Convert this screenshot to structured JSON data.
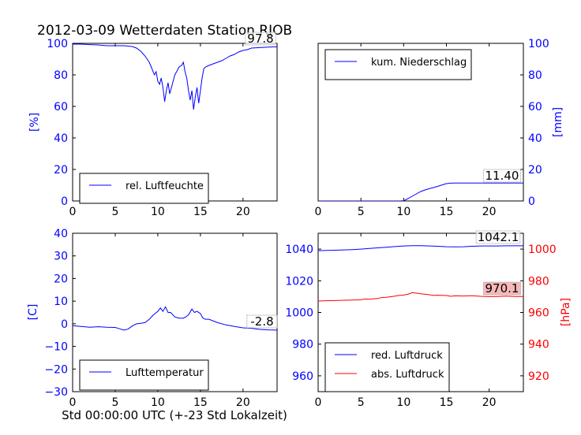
{
  "title": "2012-03-09 Wetterdaten Station RJOB",
  "footer_xlabel": "Std 00:00:00 UTC (+-23 Std Lokalzeit)",
  "colors": {
    "blue": "#0000ff",
    "red": "#ff0000",
    "black": "#000000",
    "value_box_red": "#f7b8b8"
  },
  "chart_data": [
    {
      "type": "line",
      "panel": "top-left",
      "ylabel": "[%]",
      "xlim": [
        0,
        24
      ],
      "ylim": [
        0,
        100
      ],
      "xticks": [
        "0",
        "5",
        "10",
        "15",
        "20"
      ],
      "yticks": [
        "0",
        "20",
        "40",
        "60",
        "80",
        "100"
      ],
      "legend": {
        "position": "lower-left"
      },
      "last_value_label": "97.8",
      "series": [
        {
          "name": "rel. Luftfeuchte",
          "color": "#0000ff",
          "x": [
            0,
            1,
            2,
            3,
            4,
            5,
            6,
            7,
            7.5,
            8,
            8.5,
            9,
            9.3,
            9.6,
            9.8,
            10,
            10.2,
            10.4,
            10.6,
            10.8,
            11,
            11.2,
            11.4,
            11.6,
            11.8,
            12,
            12.2,
            12.5,
            12.8,
            13,
            13.2,
            13.4,
            13.6,
            13.8,
            14,
            14.2,
            14.4,
            14.6,
            14.8,
            15,
            15.2,
            15.4,
            15.6,
            16,
            16.5,
            17,
            17.5,
            18,
            18.5,
            19,
            19.5,
            20,
            20.5,
            21,
            22,
            23,
            24
          ],
          "y": [
            99.5,
            99.5,
            99.2,
            99,
            98.5,
            98.5,
            98.5,
            98,
            97,
            95,
            92,
            88,
            84,
            80,
            82,
            76,
            74,
            78,
            72,
            63,
            70,
            75,
            68,
            72,
            76,
            80,
            82,
            85,
            86,
            88,
            82,
            78,
            70,
            64,
            70,
            58,
            66,
            72,
            62,
            70,
            78,
            84,
            85,
            86,
            87,
            88,
            89,
            90.5,
            92,
            93,
            94.5,
            95.5,
            96,
            97,
            97.3,
            97.6,
            97.8
          ]
        }
      ]
    },
    {
      "type": "line",
      "panel": "top-right",
      "ylabel": "[mm]",
      "xlim": [
        0,
        24
      ],
      "ylim": [
        0,
        100
      ],
      "xticks": [
        "0",
        "5",
        "10",
        "15",
        "20"
      ],
      "yticks": [
        "0",
        "20",
        "40",
        "60",
        "80",
        "100"
      ],
      "legend": {
        "position": "upper-left"
      },
      "last_value_label": "11.40",
      "series": [
        {
          "name": "kum. Niederschlag",
          "color": "#0000ff",
          "x": [
            0,
            5,
            9.5,
            10,
            10.5,
            11,
            11.5,
            12,
            12.5,
            13,
            13.5,
            14,
            14.5,
            15,
            15.5,
            16,
            17,
            18,
            20,
            22,
            24
          ],
          "y": [
            0,
            0,
            0,
            0.1,
            1.5,
            3,
            4.5,
            6,
            7,
            7.8,
            8.5,
            9.3,
            10.2,
            11,
            11.3,
            11.4,
            11.4,
            11.4,
            11.4,
            11.4,
            11.4
          ]
        }
      ]
    },
    {
      "type": "line",
      "panel": "bottom-left",
      "ylabel": "[C]",
      "xlabel": "Std 00:00:00 UTC (+-23 Std Lokalzeit)",
      "xlim": [
        0,
        24
      ],
      "ylim": [
        -30,
        40
      ],
      "xticks": [
        "0",
        "5",
        "10",
        "15",
        "20"
      ],
      "yticks": [
        "−30",
        "−20",
        "−10",
        "0",
        "10",
        "20",
        "30",
        "40"
      ],
      "legend": {
        "position": "lower-left"
      },
      "last_value_label": "-2.8",
      "series": [
        {
          "name": "Lufttemperatur",
          "color": "#0000ff",
          "x": [
            0,
            1,
            2,
            3,
            4,
            5,
            5.5,
            6,
            6.5,
            7,
            7.5,
            8,
            8.5,
            9,
            9.5,
            10,
            10.3,
            10.6,
            10.9,
            11.2,
            11.5,
            12,
            12.5,
            13,
            13.3,
            13.6,
            14,
            14.3,
            14.6,
            15,
            15.3,
            15.6,
            16,
            17,
            18,
            19,
            20,
            21,
            22,
            23,
            24
          ],
          "y": [
            -0.8,
            -1.2,
            -1.5,
            -1.3,
            -1.5,
            -1.6,
            -2.2,
            -2.8,
            -2.4,
            -1,
            0,
            0.2,
            0.5,
            2,
            4,
            5.5,
            7,
            5.5,
            7.5,
            5,
            5,
            3,
            2.5,
            2.5,
            3,
            4,
            6.5,
            5,
            5.5,
            4.5,
            2.5,
            2,
            2,
            0.5,
            -0.5,
            -1.2,
            -1.8,
            -2,
            -2.5,
            -2.7,
            -2.8
          ]
        }
      ]
    },
    {
      "type": "line",
      "panel": "bottom-right",
      "ylabel": "[hPa]",
      "xlim": [
        0,
        24
      ],
      "ylim_left": [
        950,
        1050
      ],
      "ylim_right": [
        910,
        1010
      ],
      "xticks": [
        "0",
        "5",
        "10",
        "15",
        "20"
      ],
      "yticks_left": [
        "960",
        "980",
        "1000",
        "1020",
        "1040"
      ],
      "yticks_right": [
        "920",
        "940",
        "960",
        "980",
        "1000"
      ],
      "legend": {
        "position": "lower-left"
      },
      "value_labels": {
        "red_luftdruck": "1042.1",
        "abs_luftdruck": "970.1"
      },
      "series": [
        {
          "name": "red. Luftdruck",
          "color": "#0000ff",
          "axis": "left",
          "x": [
            0,
            1,
            2,
            3,
            4,
            5,
            6,
            7,
            8,
            9,
            10,
            11,
            12,
            13,
            14,
            15,
            16,
            17,
            18,
            19,
            20,
            21,
            22,
            23,
            24
          ],
          "y": [
            1039,
            1039.2,
            1039.3,
            1039.5,
            1039.7,
            1040,
            1040.4,
            1040.8,
            1041.2,
            1041.6,
            1042,
            1042.2,
            1042.2,
            1042,
            1041.8,
            1041.5,
            1041.4,
            1041.5,
            1041.8,
            1042,
            1042,
            1042,
            1042.1,
            1042.1,
            1042.1
          ]
        },
        {
          "name": "abs. Luftdruck",
          "color": "#ff0000",
          "axis": "right",
          "x": [
            0,
            1,
            2,
            3,
            4,
            5,
            5.5,
            6,
            7,
            7.5,
            8,
            9,
            9.5,
            10,
            10.5,
            11,
            11.5,
            12,
            13,
            13.5,
            14,
            15,
            15.5,
            16,
            17,
            18,
            19,
            20,
            21,
            22,
            23,
            24
          ],
          "y": [
            967.2,
            967.4,
            967.5,
            967.7,
            967.8,
            968,
            968.5,
            968.4,
            968.8,
            969.5,
            969.6,
            970.3,
            970.8,
            971,
            971.5,
            972.5,
            972.2,
            971.8,
            971.2,
            970.8,
            970.9,
            970.7,
            970.2,
            970.5,
            970.4,
            970.6,
            970.2,
            970,
            970.1,
            970.3,
            970.1,
            970.1
          ]
        }
      ]
    }
  ]
}
